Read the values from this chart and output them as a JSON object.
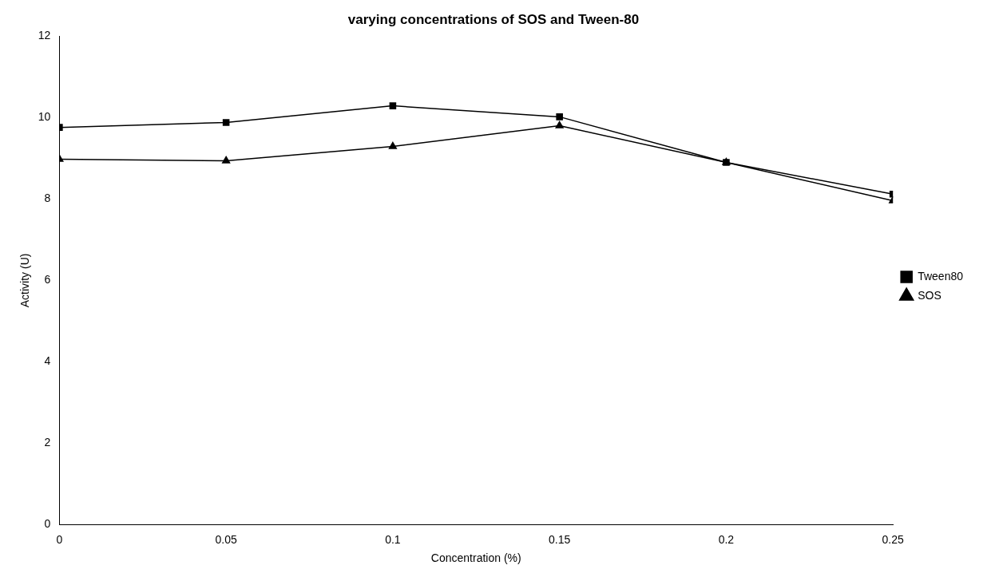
{
  "chart_data": {
    "type": "line",
    "title": "varying concentrations of SOS and Tween-80",
    "xlabel": "Concentration (%)",
    "ylabel": "Activity (U)",
    "x": [
      0,
      0.05,
      0.1,
      0.15,
      0.2,
      0.25
    ],
    "xlim": [
      0,
      0.25
    ],
    "xticks": [
      0,
      0.05,
      0.1,
      0.15,
      0.2,
      0.25
    ],
    "ylim": [
      0,
      12
    ],
    "yticks": [
      0,
      2,
      4,
      6,
      8,
      10,
      12
    ],
    "series": [
      {
        "name": "Tween80",
        "color": "#000000",
        "marker": "square",
        "values": [
          9.76,
          9.88,
          10.29,
          10.02,
          8.9,
          8.12
        ]
      },
      {
        "name": "SOS",
        "color": "#000000",
        "marker": "triangle",
        "values": [
          8.98,
          8.94,
          9.29,
          9.8,
          8.9,
          7.96
        ]
      }
    ],
    "grid": false,
    "legend": "right",
    "line_style": "solid"
  }
}
